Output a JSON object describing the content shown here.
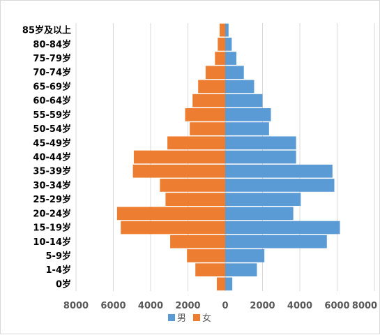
{
  "chart_data": {
    "type": "bar",
    "orientation": "horizontal",
    "style": "population-pyramid",
    "categories": [
      "0岁",
      "1-4岁",
      "5-9岁",
      "10-14岁",
      "15-19岁",
      "20-24岁",
      "25-29岁",
      "30-34岁",
      "35-39岁",
      "40-44岁",
      "45-49岁",
      "50-54岁",
      "55-59岁",
      "60-64岁",
      "65-69岁",
      "70-74岁",
      "75-79岁",
      "80-84岁",
      "85岁及以上"
    ],
    "series": [
      {
        "name": "男",
        "color": "#5b9bd5",
        "direction": "right",
        "values": [
          380,
          1700,
          2100,
          5450,
          6150,
          3650,
          4050,
          5850,
          5750,
          3800,
          3800,
          2350,
          2450,
          2000,
          1550,
          1000,
          600,
          350,
          180
        ]
      },
      {
        "name": "女",
        "color": "#ed7d31",
        "direction": "left",
        "values": [
          450,
          1600,
          2050,
          2950,
          5600,
          5800,
          3200,
          3500,
          4950,
          4900,
          3100,
          1900,
          2150,
          1750,
          1450,
          1050,
          550,
          400,
          300
        ]
      }
    ],
    "xlim": [
      -8000,
      8000
    ],
    "xticks": [
      -8000,
      -6000,
      -4000,
      -2000,
      0,
      2000,
      4000,
      6000,
      8000
    ],
    "xtick_labels": [
      "8000",
      "6000",
      "4000",
      "2000",
      "0",
      "2000",
      "4000",
      "6000",
      "8000"
    ],
    "grid": "vertical",
    "legend": "bottom",
    "title": "",
    "xlabel": "",
    "ylabel": ""
  }
}
